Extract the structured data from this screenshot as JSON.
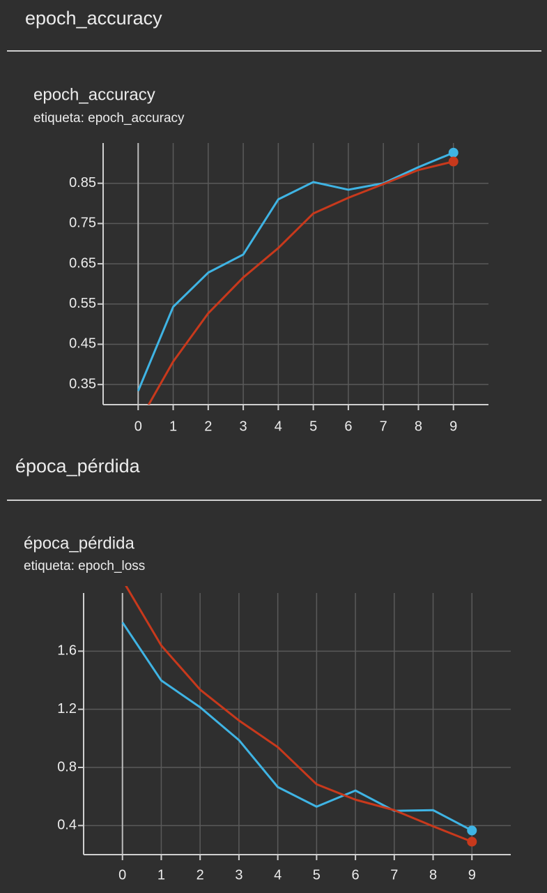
{
  "chart_data": [
    {
      "type": "line",
      "section_title": "epoch_accuracy",
      "title": "epoch_accuracy",
      "subtitle": "etiqueta: epoch_accuracy",
      "x": [
        0,
        1,
        2,
        3,
        4,
        5,
        6,
        7,
        8,
        9
      ],
      "series": [
        {
          "color": "#3fb4e4",
          "values": [
            0.334,
            0.543,
            0.628,
            0.673,
            0.81,
            0.853,
            0.834,
            0.85,
            0.89,
            0.926
          ]
        },
        {
          "color": "#c8391c",
          "values": [
            0.254,
            0.407,
            0.527,
            0.616,
            0.689,
            0.775,
            0.814,
            0.848,
            0.883,
            0.904
          ]
        }
      ],
      "xlim": [
        -1,
        10
      ],
      "xticks": [
        0,
        1,
        2,
        3,
        4,
        5,
        6,
        7,
        8,
        9
      ],
      "ylim": [
        0.3,
        0.95
      ],
      "yticks": [
        0.35,
        0.45,
        0.55,
        0.65,
        0.75,
        0.85
      ],
      "grid": true
    },
    {
      "type": "line",
      "section_title": "época_pérdida",
      "title": "época_pérdida",
      "subtitle": "etiqueta: epoch_loss",
      "x": [
        0,
        1,
        2,
        3,
        4,
        5,
        6,
        7,
        8,
        9
      ],
      "series": [
        {
          "color": "#3fb4e4",
          "values": [
            1.798,
            1.398,
            1.214,
            0.988,
            0.665,
            0.53,
            0.641,
            0.501,
            0.506,
            0.366
          ]
        },
        {
          "color": "#c8391c",
          "values": [
            2.09,
            1.639,
            1.335,
            1.123,
            0.94,
            0.684,
            0.578,
            0.506,
            0.395,
            0.289
          ]
        }
      ],
      "xlim": [
        -1,
        10
      ],
      "xticks": [
        0,
        1,
        2,
        3,
        4,
        5,
        6,
        7,
        8,
        9
      ],
      "ylim": [
        0.2,
        2.0
      ],
      "yticks": [
        0.4,
        0.8,
        1.2,
        1.6
      ],
      "grid": true
    }
  ]
}
